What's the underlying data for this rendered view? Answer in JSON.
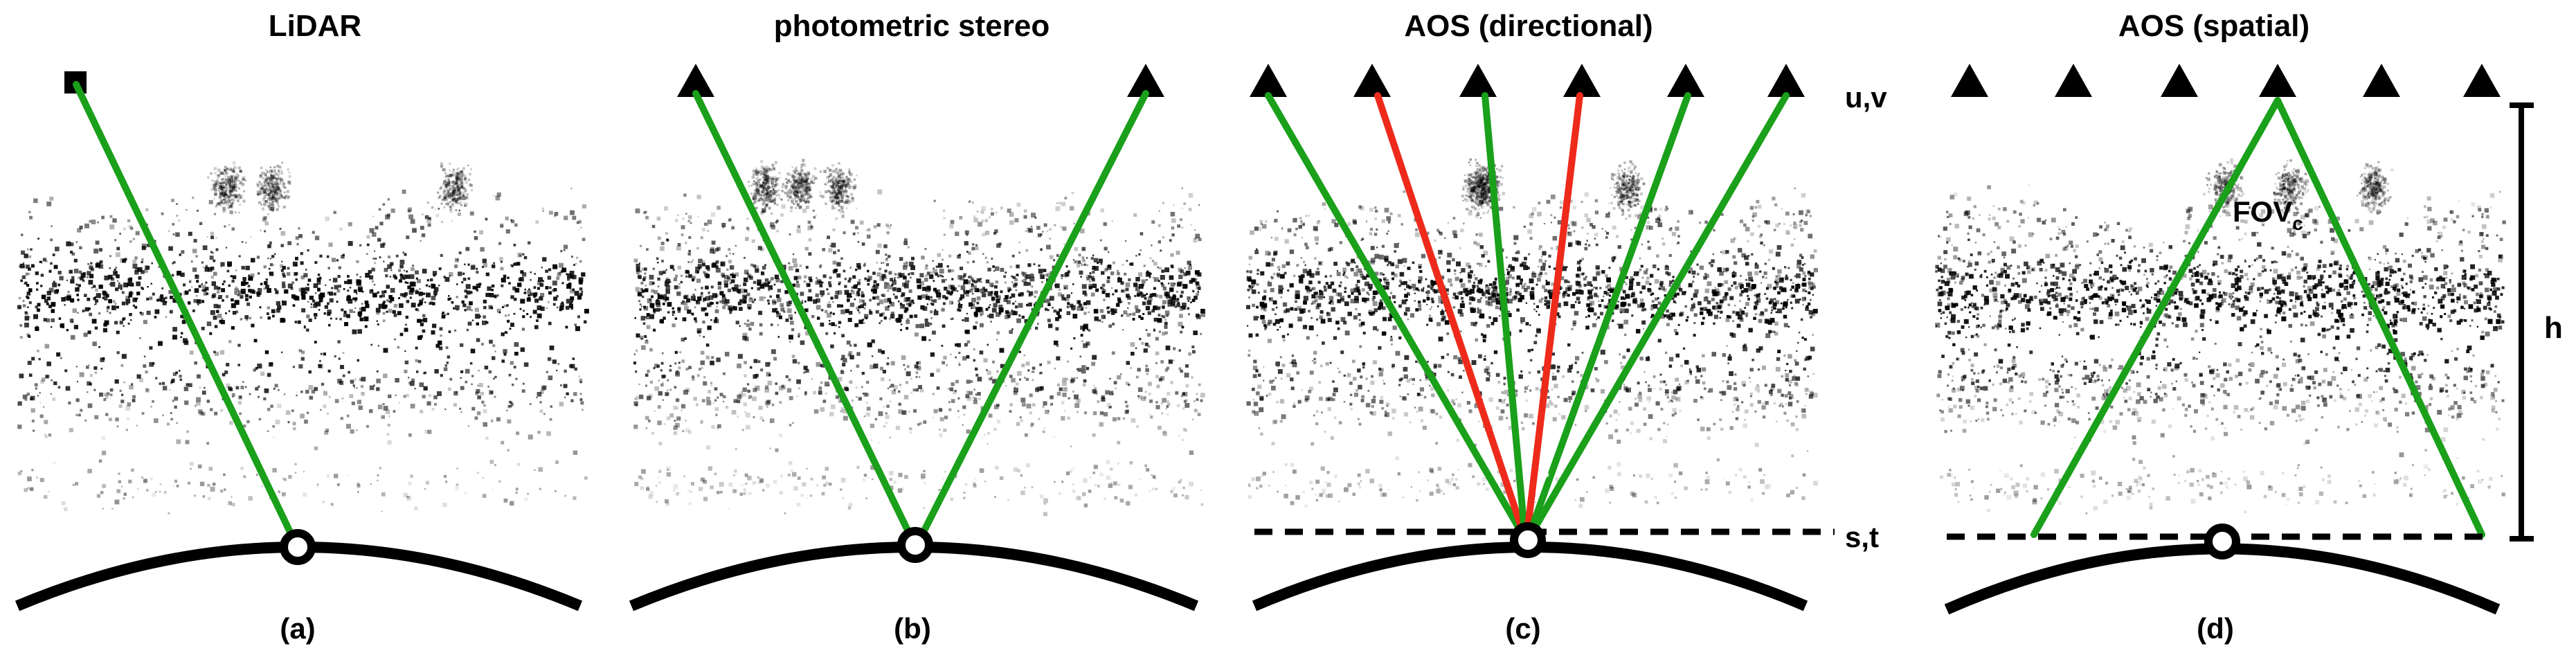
{
  "panels": [
    {
      "title": "LiDAR",
      "caption": "(a)"
    },
    {
      "title": "photometric stereo",
      "caption": "(b)"
    },
    {
      "title": "AOS (directional)",
      "caption": "(c)"
    },
    {
      "title": "AOS (spatial)",
      "caption": "(d)"
    }
  ],
  "labels": {
    "uv": "u,v",
    "st": "s,t",
    "h": "h",
    "fov": "FOV",
    "fov_sub": "c",
    "s_mark": "s"
  },
  "colors": {
    "green_ray": "#1aa01a",
    "red_ray": "#ee2a1b",
    "ink": "#000000"
  }
}
